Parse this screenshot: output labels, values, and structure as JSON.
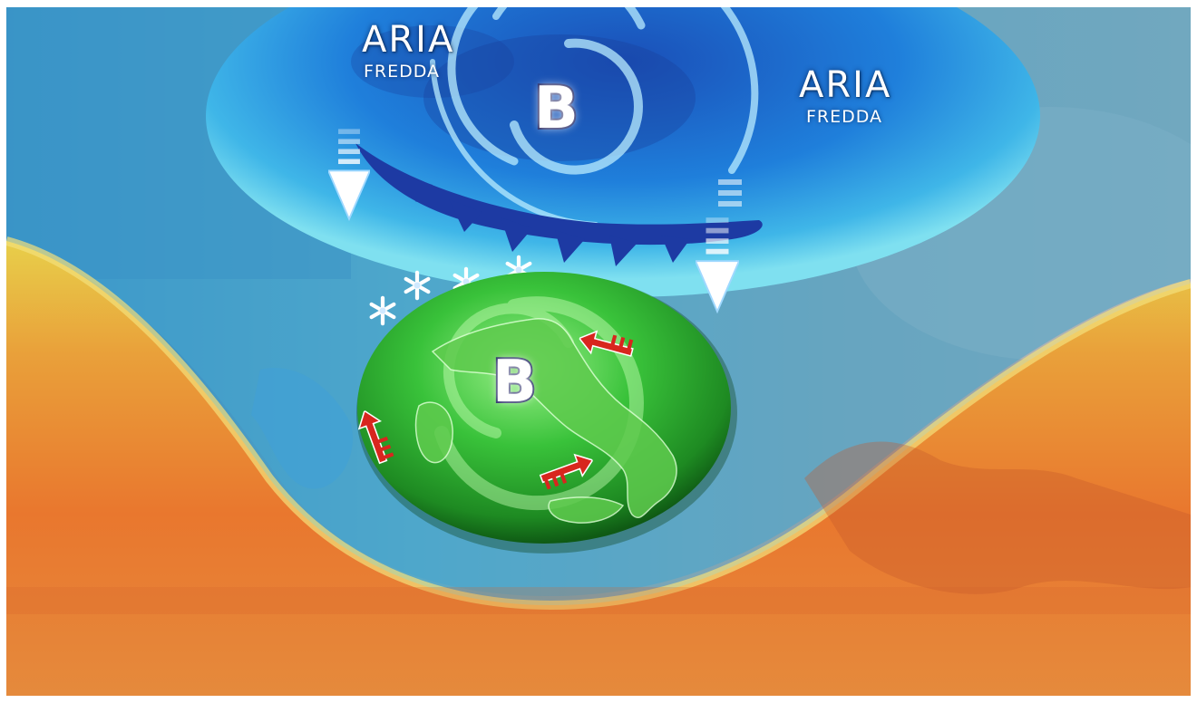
{
  "cold_air_labels": [
    {
      "title": "ARIA",
      "subtitle": "FREDDA"
    },
    {
      "title": "ARIA",
      "subtitle": "FREDDA"
    }
  ],
  "low_pressure_symbols": [
    "B",
    "B"
  ],
  "colors": {
    "warm_air_orange": "#e9772e",
    "warm_air_yellow": "#e8cf4a",
    "cold_air_blue": "#1f7fdb",
    "cold_front": "#1d3aa3",
    "low_pressure_green": "#2fae2f",
    "wind_arrow_red": "#d8261e",
    "pressure_letter_stroke": "#1b1f5e"
  },
  "icons": [
    "snowflake-icon",
    "cold-air-arrow-icon",
    "wind-arrow-icon",
    "cold-front-icon"
  ]
}
